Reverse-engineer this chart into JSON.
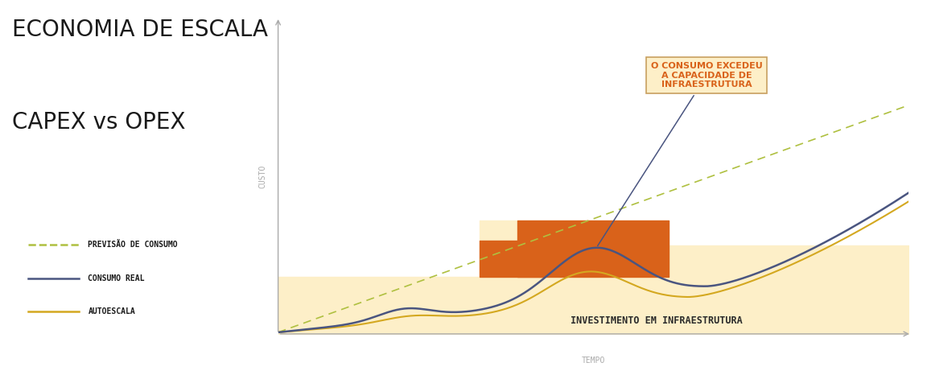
{
  "title_line1": "ECONOMIA DE ESCALA",
  "title_line2": "CAPEX vs OPEX",
  "title_fontsize": 20,
  "title_color": "#1a1a1a",
  "ylabel": "CUSTO",
  "xlabel": "TEMPO",
  "bg_color": "#ffffff",
  "axes_color": "#aaaaaa",
  "step_color_light": "#fdefc8",
  "step_color_dark": "#d9621a",
  "forecast_color": "#afc040",
  "real_color": "#4a5580",
  "autoscale_color": "#d4a820",
  "annotation_box_facecolor": "#fdefc8",
  "annotation_box_edgecolor": "#c8a060",
  "annotation_text_color": "#d9621a",
  "annotation_text": "O CONSUMO EXCEDEU\nA CAPACIDADE DE\nINFRAESTRUTURA",
  "legend_items": [
    {
      "label": "PREVISÃO DE CONSUMO",
      "color": "#afc040",
      "style": "dashed"
    },
    {
      "label": "CONSUMO REAL",
      "color": "#4a5580",
      "style": "solid"
    },
    {
      "label": "AUTOESCALA",
      "color": "#d4a820",
      "style": "solid"
    }
  ],
  "invest_label": "INVESTIMENTO EM INFRAESTRUTURA"
}
